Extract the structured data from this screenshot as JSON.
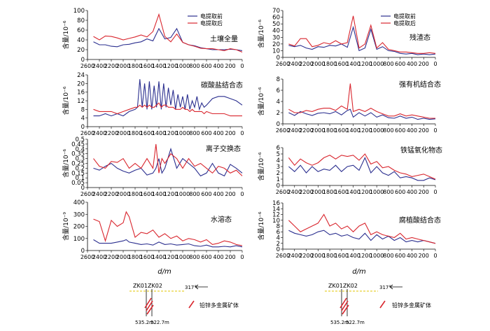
{
  "colors": {
    "before": "#2b2f8f",
    "after": "#d9262e",
    "axis": "#000000",
    "dash": "#e0c400"
  },
  "x_axis": {
    "label": "d/m",
    "ticks": [
      2600,
      2400,
      2200,
      2000,
      1800,
      1600,
      1400,
      1200,
      1000,
      800,
      600,
      400,
      200,
      0
    ]
  },
  "legend": {
    "before": "电提取前",
    "after": "电提取后"
  },
  "chart_data": [
    {
      "type": "line",
      "title": "土壤全量",
      "ylabel": "含量/10⁻⁶",
      "ylim": [
        0,
        100
      ],
      "yticks": [
        0,
        20,
        40,
        60,
        80,
        100
      ],
      "x": [
        2500,
        2400,
        2300,
        2200,
        2100,
        2000,
        1900,
        1800,
        1700,
        1600,
        1500,
        1400,
        1300,
        1200,
        1100,
        1000,
        900,
        800,
        700,
        600,
        500,
        400,
        300,
        200,
        100,
        0
      ],
      "series": [
        {
          "name": "电提取前",
          "values": [
            36,
            30,
            30,
            27,
            26,
            30,
            31,
            34,
            36,
            42,
            38,
            63,
            42,
            45,
            63,
            35,
            30,
            28,
            24,
            22,
            20,
            20,
            20,
            21,
            20,
            18
          ]
        },
        {
          "name": "电提取后",
          "values": [
            47,
            40,
            48,
            47,
            44,
            40,
            43,
            46,
            50,
            46,
            57,
            92,
            47,
            36,
            52,
            35,
            30,
            27,
            23,
            22,
            22,
            20,
            18,
            22,
            20,
            15
          ]
        }
      ],
      "legend": true
    },
    {
      "type": "line",
      "title": "残渣态",
      "ylabel": "含量/10⁻⁶",
      "ylim": [
        0,
        70
      ],
      "yticks": [
        0,
        10,
        20,
        30,
        40,
        50,
        60,
        70
      ],
      "x": [
        2500,
        2400,
        2300,
        2200,
        2100,
        2000,
        1900,
        1800,
        1700,
        1600,
        1500,
        1400,
        1300,
        1200,
        1100,
        1000,
        900,
        800,
        700,
        600,
        500,
        400,
        300,
        200,
        100,
        0
      ],
      "series": [
        {
          "name": "电提取前",
          "values": [
            18,
            16,
            18,
            14,
            12,
            16,
            15,
            18,
            17,
            20,
            15,
            45,
            10,
            14,
            42,
            12,
            16,
            10,
            9,
            6,
            5,
            6,
            4,
            5,
            4,
            5
          ]
        },
        {
          "name": "电提取后",
          "values": [
            20,
            17,
            28,
            28,
            16,
            18,
            22,
            20,
            25,
            20,
            22,
            62,
            14,
            20,
            48,
            14,
            22,
            12,
            10,
            8,
            8,
            7,
            6,
            6,
            7,
            6
          ]
        }
      ],
      "legend": true
    },
    {
      "type": "line",
      "title": "碳酸盐结合态",
      "ylabel": "含量/10⁻⁶",
      "ylim": [
        0,
        24
      ],
      "yticks": [
        0,
        4,
        8,
        12,
        16,
        20,
        24
      ],
      "x": [
        2500,
        2400,
        2300,
        2200,
        2100,
        2000,
        1900,
        1800,
        1760,
        1720,
        1680,
        1640,
        1600,
        1560,
        1520,
        1480,
        1440,
        1400,
        1360,
        1320,
        1280,
        1240,
        1200,
        1160,
        1120,
        1080,
        1040,
        1000,
        960,
        920,
        880,
        840,
        800,
        760,
        720,
        680,
        640,
        600,
        500,
        400,
        300,
        200,
        100,
        0
      ],
      "series": [
        {
          "name": "电提取前",
          "values": [
            5,
            5,
            6,
            5,
            6,
            5,
            7,
            8,
            9,
            22,
            9,
            20,
            8,
            21,
            8,
            19,
            9,
            21,
            8,
            20,
            9,
            18,
            10,
            17,
            8,
            15,
            9,
            14,
            8,
            15,
            8,
            12,
            9,
            14,
            8,
            11,
            9,
            10,
            13,
            14,
            14,
            13,
            12,
            10
          ]
        },
        {
          "name": "电提取后",
          "values": [
            8,
            7,
            7,
            7,
            6,
            7,
            8,
            9,
            9,
            10,
            9,
            10,
            9,
            10,
            9,
            9,
            10,
            11,
            9,
            10,
            10,
            9,
            9,
            9,
            8,
            8,
            8,
            9,
            8,
            8,
            7,
            8,
            7,
            7,
            7,
            7,
            6,
            7,
            6,
            6,
            6,
            5,
            5,
            5
          ]
        }
      ]
    },
    {
      "type": "line",
      "title": "强有机结合态",
      "ylabel": "含量/10⁻⁶",
      "ylim": [
        0,
        8
      ],
      "yticks": [
        0,
        2,
        4,
        6,
        8
      ],
      "x": [
        2500,
        2400,
        2300,
        2200,
        2100,
        2000,
        1900,
        1800,
        1700,
        1600,
        1500,
        1450,
        1400,
        1350,
        1300,
        1200,
        1100,
        1000,
        900,
        800,
        700,
        600,
        500,
        400,
        300,
        200,
        100,
        0
      ],
      "series": [
        {
          "name": "电提取前",
          "values": [
            2.0,
            1.5,
            2.2,
            1.8,
            1.5,
            1.9,
            2.0,
            1.8,
            2.2,
            1.6,
            2.4,
            2.6,
            1.2,
            1.6,
            2.0,
            1.4,
            2.0,
            1.2,
            1.6,
            1.1,
            1.0,
            1.4,
            1.0,
            1.2,
            0.8,
            1.0,
            0.8,
            0.9
          ]
        },
        {
          "name": "电提取后",
          "values": [
            2.6,
            2.0,
            2.0,
            2.4,
            2.2,
            2.6,
            2.8,
            2.8,
            2.4,
            3.2,
            2.6,
            7.2,
            2.2,
            2.4,
            2.6,
            2.2,
            2.8,
            2.2,
            1.8,
            1.4,
            1.4,
            1.8,
            1.4,
            1.6,
            1.4,
            1.2,
            1.0,
            1.0
          ]
        }
      ]
    },
    {
      "type": "line",
      "title": "离子交换态",
      "ylabel": "含量/10⁻⁶",
      "ylim": [
        0,
        0.5
      ],
      "yticks": [
        0,
        0.05,
        0.1,
        0.15,
        0.2,
        0.25,
        0.3,
        0.35,
        0.4,
        0.45,
        0.5
      ],
      "x": [
        2500,
        2400,
        2300,
        2200,
        2100,
        2000,
        1900,
        1800,
        1700,
        1600,
        1500,
        1450,
        1400,
        1350,
        1300,
        1200,
        1100,
        1000,
        900,
        800,
        700,
        600,
        500,
        400,
        300,
        200,
        100,
        0
      ],
      "series": [
        {
          "name": "电提取前",
          "values": [
            0.2,
            0.18,
            0.22,
            0.25,
            0.2,
            0.17,
            0.15,
            0.18,
            0.2,
            0.13,
            0.15,
            0.2,
            0.3,
            0.15,
            0.2,
            0.4,
            0.2,
            0.3,
            0.25,
            0.2,
            0.12,
            0.15,
            0.25,
            0.15,
            0.12,
            0.24,
            0.2,
            0.15
          ]
        },
        {
          "name": "电提取后",
          "values": [
            0.3,
            0.22,
            0.2,
            0.27,
            0.26,
            0.3,
            0.2,
            0.25,
            0.2,
            0.3,
            0.2,
            0.45,
            0.15,
            0.3,
            0.25,
            0.35,
            0.3,
            0.2,
            0.3,
            0.22,
            0.25,
            0.2,
            0.15,
            0.22,
            0.2,
            0.15,
            0.18,
            0.12
          ]
        }
      ]
    },
    {
      "type": "line",
      "title": "铁锰氧化物态",
      "ylabel": "含量/10⁻⁶",
      "ylim": [
        0,
        6
      ],
      "yticks": [
        0,
        1,
        2,
        3,
        4,
        5,
        6
      ],
      "x": [
        2500,
        2400,
        2300,
        2200,
        2100,
        2000,
        1900,
        1800,
        1700,
        1600,
        1500,
        1400,
        1300,
        1200,
        1100,
        1000,
        900,
        800,
        700,
        600,
        500,
        400,
        300,
        200,
        100,
        0
      ],
      "series": [
        {
          "name": "电提取前",
          "values": [
            3.0,
            2.2,
            3.2,
            2.0,
            3.0,
            2.2,
            2.6,
            2.4,
            3.2,
            2.2,
            3.0,
            3.2,
            2.4,
            4.4,
            2.0,
            3.0,
            2.0,
            1.6,
            2.2,
            1.2,
            1.4,
            1.2,
            0.8,
            0.8,
            1.2,
            0.9
          ]
        },
        {
          "name": "电提取后",
          "values": [
            4.4,
            3.2,
            4.2,
            3.6,
            3.2,
            3.6,
            4.4,
            4.8,
            4.2,
            4.8,
            4.6,
            4.8,
            4.0,
            5.0,
            3.4,
            3.8,
            2.8,
            3.0,
            2.4,
            2.0,
            1.8,
            1.4,
            1.6,
            1.8,
            1.4,
            1.0
          ]
        }
      ]
    },
    {
      "type": "line",
      "title": "水溶态",
      "ylabel": "含量/10⁻⁹",
      "ylim": [
        0,
        400
      ],
      "yticks": [
        0,
        100,
        200,
        300,
        400
      ],
      "x": [
        2500,
        2400,
        2300,
        2200,
        2100,
        2000,
        1950,
        1900,
        1800,
        1700,
        1600,
        1500,
        1400,
        1300,
        1200,
        1100,
        1000,
        900,
        800,
        700,
        600,
        500,
        400,
        300,
        200,
        100,
        0
      ],
      "series": [
        {
          "name": "电提取前",
          "values": [
            90,
            60,
            60,
            60,
            70,
            80,
            90,
            70,
            60,
            50,
            55,
            45,
            70,
            50,
            55,
            45,
            50,
            55,
            40,
            35,
            45,
            30,
            30,
            35,
            30,
            40,
            30
          ]
        },
        {
          "name": "电提取后",
          "values": [
            260,
            240,
            80,
            250,
            200,
            230,
            320,
            280,
            110,
            150,
            140,
            170,
            110,
            140,
            100,
            120,
            80,
            100,
            90,
            70,
            90,
            50,
            60,
            80,
            70,
            50,
            40
          ]
        }
      ]
    },
    {
      "type": "line",
      "title": "腐植酸结合态",
      "ylabel": "含量/10⁻⁶",
      "ylim": [
        0,
        16
      ],
      "yticks": [
        0,
        2,
        4,
        6,
        8,
        10,
        12,
        14,
        16
      ],
      "x": [
        2500,
        2400,
        2300,
        2200,
        2100,
        2000,
        1900,
        1800,
        1700,
        1600,
        1500,
        1400,
        1300,
        1200,
        1100,
        1000,
        900,
        800,
        700,
        600,
        500,
        400,
        300,
        200,
        100,
        0
      ],
      "series": [
        {
          "name": "电提取前",
          "values": [
            6.5,
            5.5,
            5.0,
            4.5,
            5.0,
            6.0,
            6.5,
            5.0,
            5.5,
            4.5,
            5.0,
            4.0,
            3.5,
            5.5,
            3.0,
            5.0,
            3.5,
            4.5,
            3.0,
            4.0,
            2.5,
            3.0,
            2.5,
            3.0,
            2.5,
            2.0
          ]
        },
        {
          "name": "电提取后",
          "values": [
            10.0,
            8.0,
            6.0,
            7.0,
            8.0,
            9.0,
            12.0,
            8.0,
            9.0,
            7.0,
            8.0,
            6.0,
            8.0,
            9.0,
            5.0,
            6.0,
            5.0,
            4.5,
            4.0,
            5.5,
            3.5,
            4.0,
            3.5,
            3.0,
            2.5,
            2.0
          ]
        }
      ]
    }
  ],
  "sections": [
    {
      "drill_left": "ZK01",
      "drill_right": "ZK02",
      "depth_left": "535.2m",
      "depth_right": "522.7m",
      "azimuth": "317°",
      "legend_label": "铅锌多金属矿体"
    },
    {
      "drill_left": "ZK01",
      "drill_right": "ZK02",
      "depth_left": "535.2m",
      "depth_right": "522.7m",
      "azimuth": "317°",
      "legend_label": "铅锌多金属矿体"
    }
  ]
}
